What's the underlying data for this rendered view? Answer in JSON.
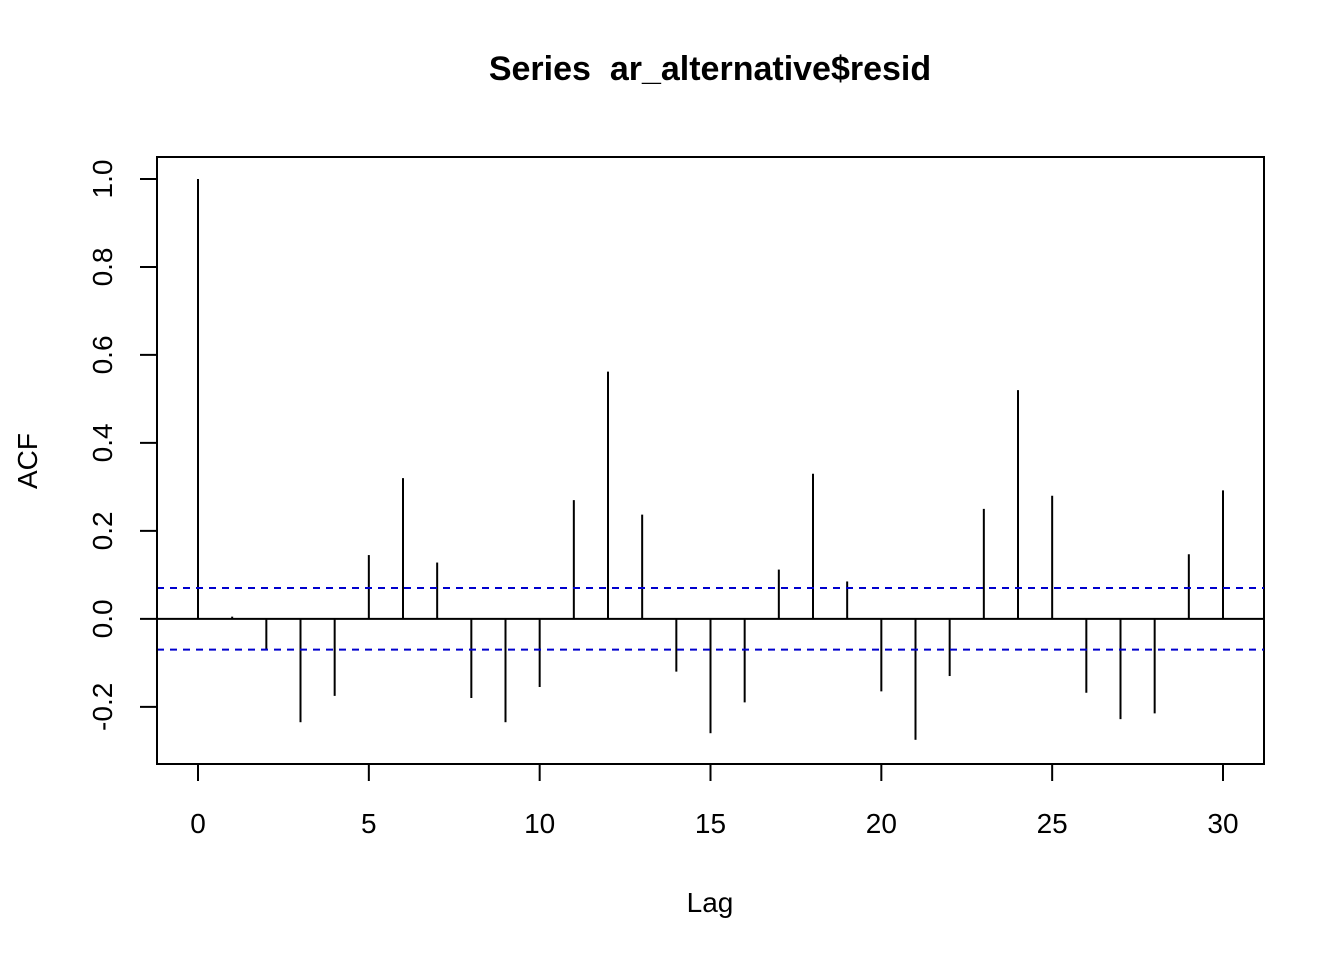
{
  "chart_data": {
    "type": "bar",
    "title": "Series  ar_alternative$resid",
    "xlabel": "Lag",
    "ylabel": "ACF",
    "xlim": [
      -1.2,
      31.2
    ],
    "ylim": [
      -0.33,
      1.05
    ],
    "x_ticks": [
      "0",
      "5",
      "10",
      "15",
      "20",
      "25",
      "30"
    ],
    "y_ticks": [
      "-0.2",
      "0.0",
      "0.2",
      "0.4",
      "0.6",
      "0.8",
      "1.0"
    ],
    "lags": [
      0,
      1,
      2,
      3,
      4,
      5,
      6,
      7,
      8,
      9,
      10,
      11,
      12,
      13,
      14,
      15,
      16,
      17,
      18,
      19,
      20,
      21,
      22,
      23,
      24,
      25,
      26,
      27,
      28,
      29,
      30
    ],
    "values": [
      1.0,
      0.005,
      -0.07,
      -0.235,
      -0.175,
      0.145,
      0.32,
      0.128,
      -0.18,
      -0.235,
      -0.155,
      0.27,
      0.562,
      0.237,
      -0.12,
      -0.26,
      -0.19,
      0.112,
      0.33,
      0.085,
      -0.165,
      -0.275,
      -0.13,
      0.25,
      0.52,
      0.28,
      -0.168,
      -0.228,
      -0.215,
      0.147,
      0.292
    ],
    "confidence_bound": 0.07,
    "confidence_color": "#0000CD",
    "bar_color": "#000000",
    "grid": false
  }
}
